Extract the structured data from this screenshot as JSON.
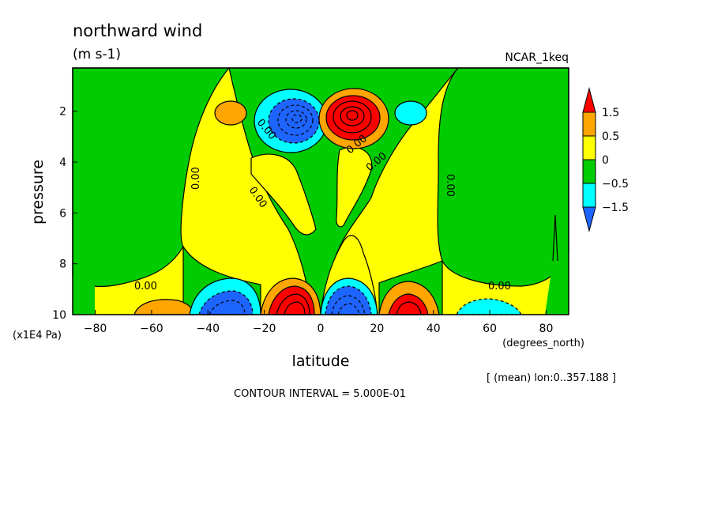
{
  "chart_data": {
    "type": "heatmap",
    "title": "northward wind",
    "units": "(m s-1)",
    "dataset": "NCAR_1keq",
    "xlabel": "latitude",
    "xunits": "(degrees_north)",
    "ylabel": "pressure",
    "yunits": "(x1E4 Pa)",
    "xlim": [
      -88,
      88
    ],
    "ylim": [
      10,
      0.3
    ],
    "x_ticks": [
      -80,
      -60,
      -40,
      -20,
      0,
      20,
      40,
      60,
      80
    ],
    "x_tick_labels": [
      "−80",
      "−60",
      "−40",
      "−20",
      "0",
      "20",
      "40",
      "60",
      "80"
    ],
    "y_ticks": [
      2,
      4,
      6,
      8,
      10
    ],
    "y_tick_labels": [
      "2",
      "4",
      "6",
      "8",
      "10"
    ],
    "contour_interval_text": "CONTOUR INTERVAL = 5.000E-01",
    "averaging_note": "[ (mean) lon:0..357.188 ]",
    "contour_labels": [
      "0.00",
      "0.00",
      "0.00",
      "0.00",
      "0.00",
      "0.00",
      "0.00",
      "0.00"
    ],
    "colorbar": {
      "levels": [
        -1.5,
        -0.5,
        0,
        0.5,
        1.5
      ],
      "labels": [
        "1.5",
        "0.5",
        "0",
        "−0.5",
        "−1.5"
      ],
      "colors": [
        "#ff0000",
        "#ffa500",
        "#ffff00",
        "#00cc00",
        "#00ffff",
        "#1e64ff"
      ]
    },
    "features": [
      {
        "name": "upper-negative-cell",
        "lat": -10,
        "p": 2.3,
        "value": -2.5
      },
      {
        "name": "upper-positive-cell",
        "lat": 9,
        "p": 2.1,
        "value": 2.5
      },
      {
        "name": "lower-positive-cell-sh",
        "lat": -8,
        "p": 9.6,
        "value": 3.0
      },
      {
        "name": "lower-negative-cell-nh",
        "lat": 8,
        "p": 9.6,
        "value": -3.0
      },
      {
        "name": "lower-negative-cell-sh",
        "lat": -33,
        "p": 9.6,
        "value": -1.5
      },
      {
        "name": "lower-positive-cell-nh",
        "lat": 33,
        "p": 9.6,
        "value": 1.5
      }
    ]
  }
}
